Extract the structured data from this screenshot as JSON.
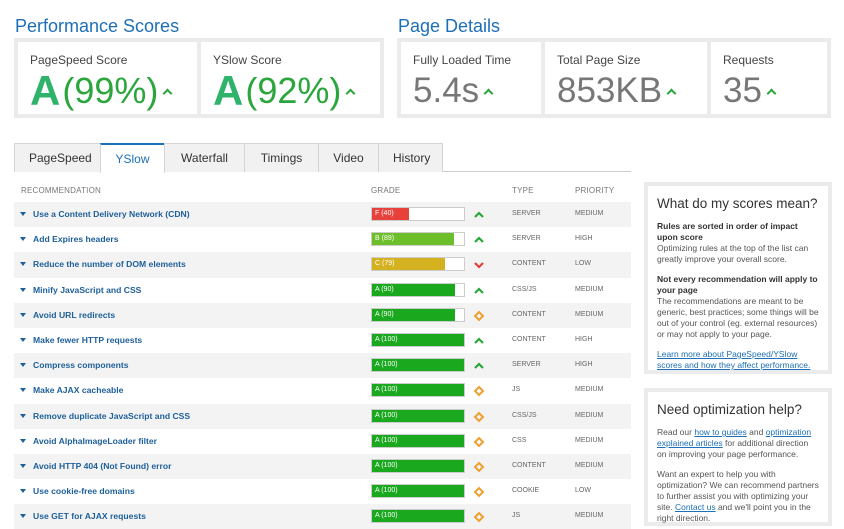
{
  "perf": {
    "title": "Performance Scores",
    "pagespeed_label": "PageSpeed Score",
    "pagespeed_grade": "A",
    "pagespeed_pct": "(99%)",
    "yslow_label": "YSlow Score",
    "yslow_grade": "A",
    "yslow_pct": "(92%)"
  },
  "details": {
    "title": "Page Details",
    "loaded_label": "Fully Loaded Time",
    "loaded_value": "5.4s",
    "size_label": "Total Page Size",
    "size_value": "853KB",
    "requests_label": "Requests",
    "requests_value": "35"
  },
  "tabs": [
    "PageSpeed",
    "YSlow",
    "Waterfall",
    "Timings",
    "Video",
    "History"
  ],
  "active_tab": 1,
  "table": {
    "headers": {
      "recommendation": "RECOMMENDATION",
      "grade": "GRADE",
      "type": "TYPE",
      "priority": "PRIORITY"
    },
    "rows": [
      {
        "name": "Use a Content Delivery Network (CDN)",
        "grade": "F (40)",
        "score": 40,
        "color": "#e8413c",
        "trend": "up",
        "type": "SERVER",
        "priority": "MEDIUM"
      },
      {
        "name": "Add Expires headers",
        "grade": "B (89)",
        "score": 89,
        "color": "#6cbf2a",
        "trend": "up",
        "type": "SERVER",
        "priority": "HIGH"
      },
      {
        "name": "Reduce the number of DOM elements",
        "grade": "C (79)",
        "score": 79,
        "color": "#d4b11f",
        "trend": "down",
        "type": "CONTENT",
        "priority": "LOW"
      },
      {
        "name": "Minify JavaScript and CSS",
        "grade": "A (90)",
        "score": 90,
        "color": "#1aa81f",
        "trend": "up",
        "type": "CSS/JS",
        "priority": "MEDIUM"
      },
      {
        "name": "Avoid URL redirects",
        "grade": "A (90)",
        "score": 90,
        "color": "#1aa81f",
        "trend": "same",
        "type": "CONTENT",
        "priority": "MEDIUM"
      },
      {
        "name": "Make fewer HTTP requests",
        "grade": "A (100)",
        "score": 100,
        "color": "#1aa81f",
        "trend": "up",
        "type": "CONTENT",
        "priority": "HIGH"
      },
      {
        "name": "Compress components",
        "grade": "A (100)",
        "score": 100,
        "color": "#1aa81f",
        "trend": "up",
        "type": "SERVER",
        "priority": "HIGH"
      },
      {
        "name": "Make AJAX cacheable",
        "grade": "A (100)",
        "score": 100,
        "color": "#1aa81f",
        "trend": "same",
        "type": "JS",
        "priority": "MEDIUM"
      },
      {
        "name": "Remove duplicate JavaScript and CSS",
        "grade": "A (100)",
        "score": 100,
        "color": "#1aa81f",
        "trend": "same",
        "type": "CSS/JS",
        "priority": "MEDIUM"
      },
      {
        "name": "Avoid AlphaImageLoader filter",
        "grade": "A (100)",
        "score": 100,
        "color": "#1aa81f",
        "trend": "same",
        "type": "CSS",
        "priority": "MEDIUM"
      },
      {
        "name": "Avoid HTTP 404 (Not Found) error",
        "grade": "A (100)",
        "score": 100,
        "color": "#1aa81f",
        "trend": "same",
        "type": "CONTENT",
        "priority": "MEDIUM"
      },
      {
        "name": "Use cookie-free domains",
        "grade": "A (100)",
        "score": 100,
        "color": "#1aa81f",
        "trend": "same",
        "type": "COOKIE",
        "priority": "LOW"
      },
      {
        "name": "Use GET for AJAX requests",
        "grade": "A (100)",
        "score": 100,
        "color": "#1aa81f",
        "trend": "same",
        "type": "JS",
        "priority": "MEDIUM"
      }
    ]
  },
  "scores_box": {
    "title": "What do my scores mean?",
    "h1": "Rules are sorted in order of impact upon score",
    "p1": "Optimizing rules at the top of the list can greatly improve your overall score.",
    "h2": "Not every recommendation will apply to your page",
    "p2": "The recommendations are meant to be generic, best practices; some things will be out of your control (eg. external resources) or may not apply to your page.",
    "link": "Learn more about PageSpeed/YSlow scores and how they affect performance."
  },
  "help_box": {
    "title": "Need optimization help?",
    "p1_a": "Read our ",
    "p1_link1": "how to guides",
    "p1_b": " and ",
    "p1_link2": "optimization explained articles",
    "p1_c": " for additional direction on improving your page performance.",
    "p2_a": "Want an expert to help you with optimization? We can recommend partners to further assist you with optimizing your site. ",
    "p2_link": "Contact us",
    "p2_b": " and we'll point you in the right direction."
  },
  "icons": {
    "trend_up": "caret-up-icon",
    "trend_down": "caret-down-icon",
    "trend_same": "diamond-icon",
    "row_toggle": "triangle-down-icon"
  },
  "colors": {
    "accent": "#1d6fb7",
    "good": "#2aa63c",
    "bad": "#e0413c",
    "neutral": "#f0a030"
  }
}
